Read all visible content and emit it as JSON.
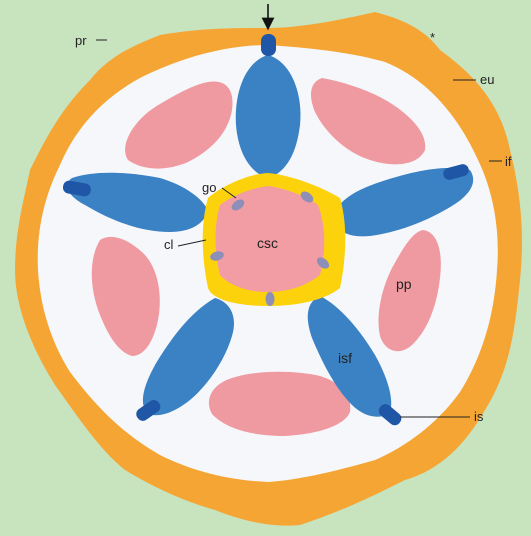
{
  "labels": {
    "pr": "pr",
    "eu": "eu",
    "if": "if",
    "go": "go",
    "cl": "cl",
    "csc": "csc",
    "pp": "pp",
    "isf": "isf",
    "is": "is",
    "star": "*"
  },
  "colors": {
    "background": "#c8e4bf",
    "outer_layer": "#f5a533",
    "inner_region": "#f6f7fb",
    "arms": "#3b82c4",
    "arm_tips": "#1f57a6",
    "pink_regions": "#ef9aa0",
    "ring": "#fcd20c",
    "center": "#f29ca3",
    "small_ovals": "#8e8fb8"
  },
  "symmetry": "five-fold",
  "arm_count": 5,
  "pink_region_count": 5,
  "small_oval_count": 5
}
